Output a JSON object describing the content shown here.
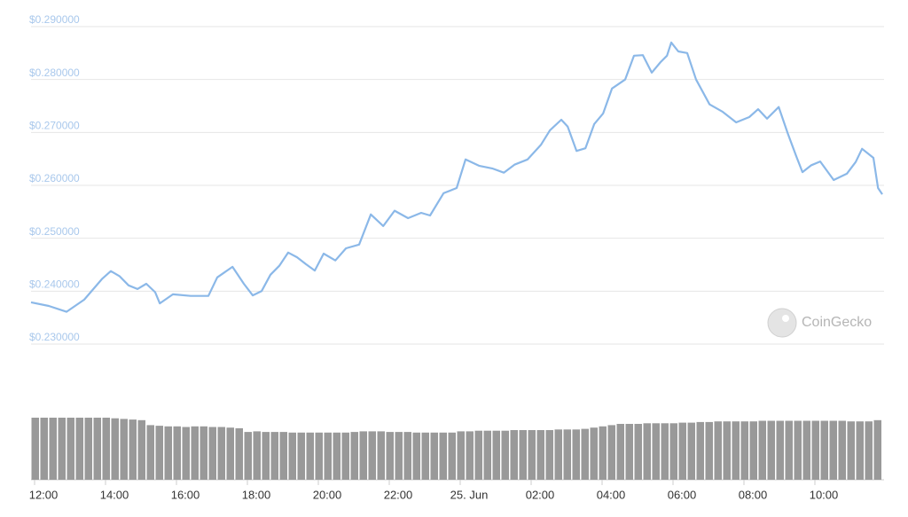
{
  "chart_data": {
    "type": "line",
    "watermark": "CoinGecko",
    "ylim": [
      0.23,
      0.29
    ],
    "yticks": [
      {
        "value": 0.29,
        "label": "$0.290000"
      },
      {
        "value": 0.28,
        "label": "$0.280000"
      },
      {
        "value": 0.27,
        "label": "$0.270000"
      },
      {
        "value": 0.26,
        "label": "$0.260000"
      },
      {
        "value": 0.25,
        "label": "$0.250000"
      },
      {
        "value": 0.24,
        "label": "$0.240000"
      },
      {
        "value": 0.23,
        "label": "$0.230000"
      }
    ],
    "xlim": [
      11.9,
      35.9
    ],
    "xticks": [
      {
        "value": 12,
        "label": "12:00"
      },
      {
        "value": 14,
        "label": "14:00"
      },
      {
        "value": 16,
        "label": "16:00"
      },
      {
        "value": 18,
        "label": "18:00"
      },
      {
        "value": 20,
        "label": "20:00"
      },
      {
        "value": 22,
        "label": "22:00"
      },
      {
        "value": 24,
        "label": "25. Jun"
      },
      {
        "value": 26,
        "label": "02:00"
      },
      {
        "value": 28,
        "label": "04:00"
      },
      {
        "value": 30,
        "label": "06:00"
      },
      {
        "value": 32,
        "label": "08:00"
      },
      {
        "value": 34,
        "label": "10:00"
      }
    ],
    "grid": true,
    "x": [
      11.9,
      12.4,
      12.9,
      13.4,
      13.9,
      14.15,
      14.4,
      14.65,
      14.9,
      15.15,
      15.4,
      15.53,
      15.9,
      16.4,
      16.9,
      17.15,
      17.58,
      17.9,
      18.15,
      18.4,
      18.65,
      18.9,
      19.15,
      19.4,
      19.65,
      19.9,
      20.15,
      20.48,
      20.78,
      21.15,
      21.48,
      21.83,
      22.15,
      22.53,
      22.9,
      23.15,
      23.53,
      23.9,
      24.15,
      24.53,
      24.9,
      25.23,
      25.53,
      25.9,
      26.28,
      26.53,
      26.85,
      27.03,
      27.28,
      27.53,
      27.78,
      28.03,
      28.28,
      28.65,
      28.9,
      29.15,
      29.4,
      29.65,
      29.83,
      29.95,
      30.15,
      30.4,
      30.65,
      31.03,
      31.4,
      31.78,
      32.15,
      32.4,
      32.65,
      32.98,
      33.23,
      33.48,
      33.65,
      33.9,
      34.15,
      34.53,
      34.9,
      35.15,
      35.33,
      35.65,
      35.78,
      35.9
    ],
    "series": [
      {
        "name": "Price",
        "color": "#8bb8e8",
        "values": [
          0.2379,
          0.2372,
          0.2361,
          0.2384,
          0.2423,
          0.2438,
          0.2428,
          0.2411,
          0.2404,
          0.2414,
          0.2398,
          0.2377,
          0.2394,
          0.2391,
          0.2391,
          0.2426,
          0.2446,
          0.2414,
          0.2392,
          0.24,
          0.2431,
          0.2448,
          0.2473,
          0.2464,
          0.2451,
          0.2439,
          0.2471,
          0.2458,
          0.2481,
          0.2488,
          0.2545,
          0.2523,
          0.2552,
          0.2538,
          0.2548,
          0.2543,
          0.2585,
          0.2595,
          0.2649,
          0.2637,
          0.2632,
          0.2624,
          0.2639,
          0.2649,
          0.2677,
          0.2704,
          0.2724,
          0.2711,
          0.2665,
          0.267,
          0.2716,
          0.2736,
          0.2783,
          0.28,
          0.2845,
          0.2846,
          0.2813,
          0.2833,
          0.2845,
          0.287,
          0.2853,
          0.285,
          0.28,
          0.2753,
          0.2739,
          0.2719,
          0.2729,
          0.2744,
          0.2726,
          0.2748,
          0.2699,
          0.2654,
          0.2625,
          0.2638,
          0.2645,
          0.261,
          0.2622,
          0.2644,
          0.2669,
          0.2652,
          0.2595,
          0.2583
        ]
      }
    ],
    "volume": {
      "name": "Volume",
      "color": "#999999",
      "ylim": [
        0,
        100
      ],
      "values": [
        100,
        100,
        100,
        100,
        100,
        100,
        100,
        100,
        100,
        99,
        98,
        97,
        96,
        88,
        87,
        86,
        86,
        85,
        86,
        86,
        85,
        85,
        84,
        83,
        77,
        78,
        77,
        77,
        77,
        76,
        76,
        76,
        76,
        76,
        76,
        76,
        77,
        78,
        78,
        78,
        77,
        77,
        77,
        76,
        76,
        76,
        76,
        76,
        78,
        78,
        79,
        79,
        79,
        79,
        80,
        80,
        80,
        80,
        80,
        81,
        81,
        81,
        82,
        84,
        86,
        88,
        90,
        90,
        90,
        91,
        91,
        91,
        91,
        92,
        92,
        93,
        93,
        94,
        94,
        94,
        94,
        94,
        95,
        95,
        95,
        95,
        95,
        95,
        95,
        95,
        95,
        95,
        94,
        94,
        94,
        96
      ]
    }
  }
}
